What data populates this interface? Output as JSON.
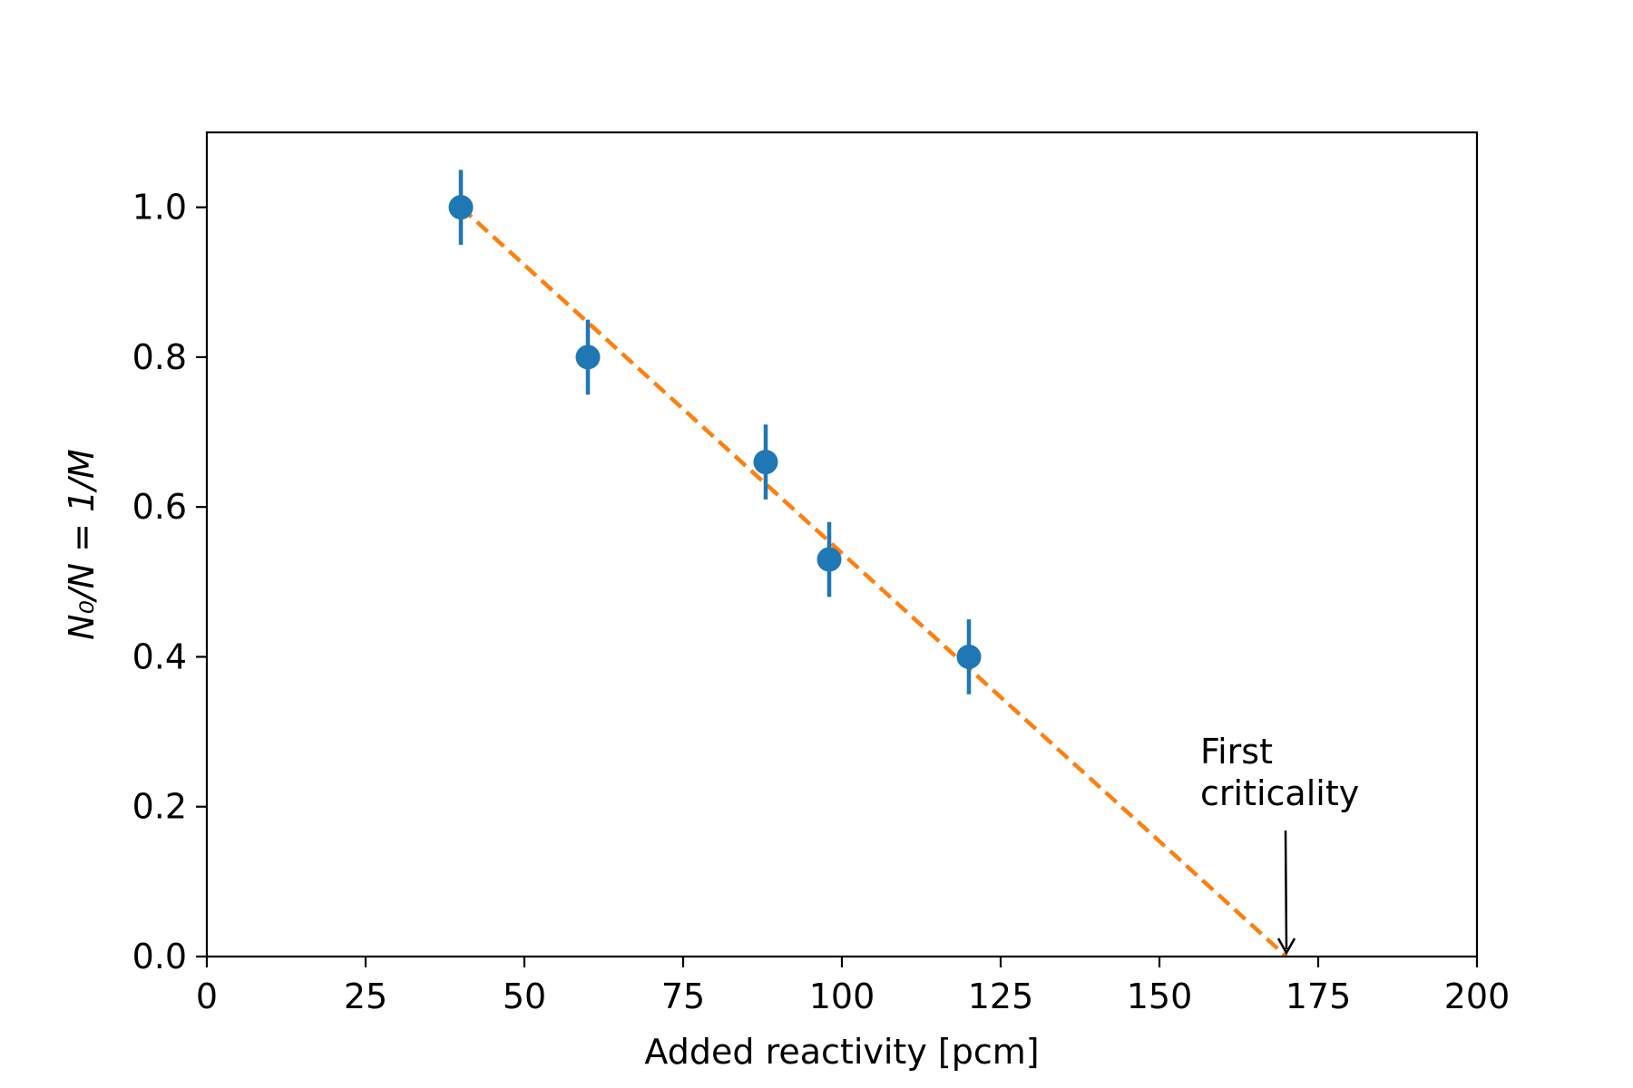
{
  "chart_data": {
    "type": "scatter",
    "title": "",
    "xlabel": "Added reactivity [pcm]",
    "ylabel": "N₀/N = 1/M",
    "xlim": [
      0,
      200
    ],
    "ylim": [
      0,
      1.1
    ],
    "xticks": [
      0,
      25,
      50,
      75,
      100,
      125,
      150,
      175,
      200
    ],
    "xtick_labels": [
      "0",
      "25",
      "50",
      "75",
      "100",
      "125",
      "150",
      "175",
      "200"
    ],
    "yticks": [
      0.0,
      0.2,
      0.4,
      0.6,
      0.8,
      1.0
    ],
    "ytick_labels": [
      "0.0",
      "0.2",
      "0.4",
      "0.6",
      "0.8",
      "1.0"
    ],
    "grid": false,
    "legend": "none",
    "series": [
      {
        "kind": "errorbar",
        "color": "#1f77b4",
        "x": [
          40,
          60,
          88,
          98,
          120
        ],
        "y": [
          1.0,
          0.8,
          0.66,
          0.53,
          0.4
        ],
        "yerr": [
          0.05,
          0.05,
          0.05,
          0.05,
          0.05
        ]
      },
      {
        "kind": "dashed-line",
        "color": "#ff7f0e",
        "x": [
          40,
          170
        ],
        "y": [
          1.0,
          0.0
        ]
      }
    ],
    "annotations": [
      {
        "text_lines": [
          "First",
          "criticality"
        ],
        "arrow_to": [
          170,
          0.0
        ]
      }
    ]
  }
}
